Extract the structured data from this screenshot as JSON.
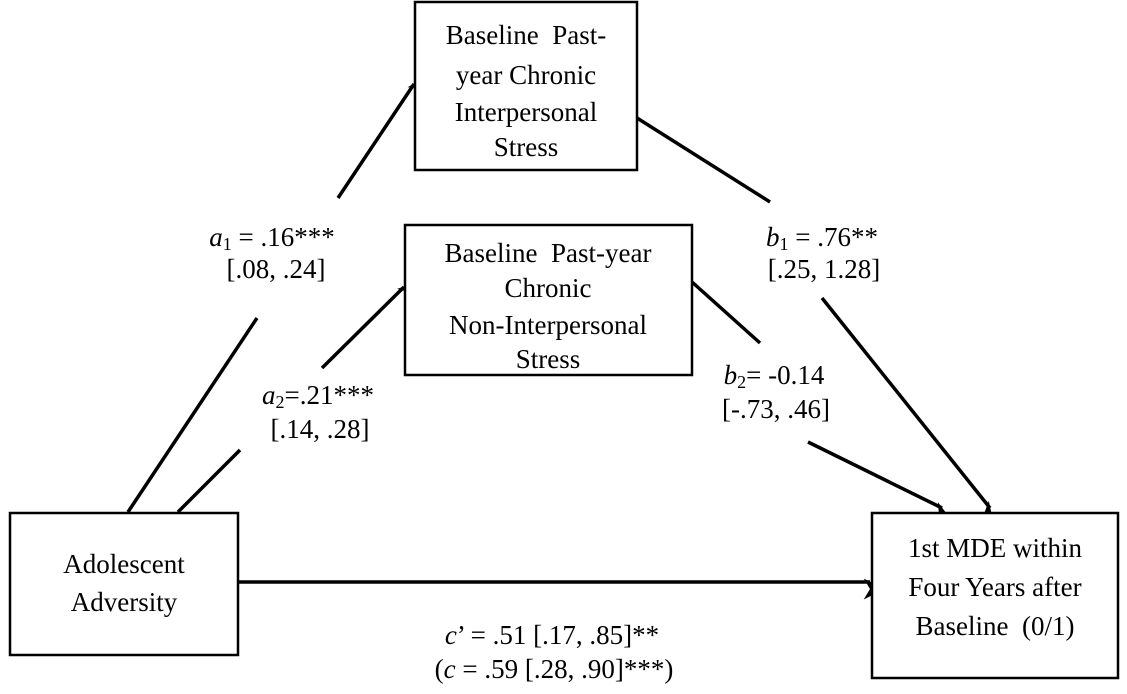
{
  "nodes": [
    {
      "lines": [
        "Baseline  Past-",
        "year Chronic",
        "Interpersonal",
        "Stress"
      ]
    },
    {
      "lines": [
        "Baseline  Past-year",
        "Chronic",
        "Non-Interpersonal",
        "Stress"
      ]
    },
    {
      "lines": [
        "Adolescent",
        "Adversity"
      ]
    },
    {
      "lines": [
        "1st MDE within",
        "Four Years after",
        "Baseline  (0/1)"
      ]
    }
  ],
  "edges": [
    {
      "symbol": "a",
      "subscript": "1",
      "text": " = .16***",
      "ci": "[.08, .24]"
    },
    {
      "symbol": "a",
      "subscript": "2",
      "text": "=.21***",
      "ci": "[.14, .28]"
    },
    {
      "symbol": "b",
      "subscript": "1",
      "text": " = .76**",
      "ci": "[.25, 1.28]"
    },
    {
      "symbol": "b",
      "subscript": "2",
      "text": "= -0.14",
      "ci": "[-.73, .46]"
    },
    {
      "symbol": "c",
      "text": "’ = .51 [.17, .85]**",
      "ci_prefix": "(",
      "ci_symbol": "c",
      "ci": " = .59 [.28, .90]***)"
    }
  ]
}
